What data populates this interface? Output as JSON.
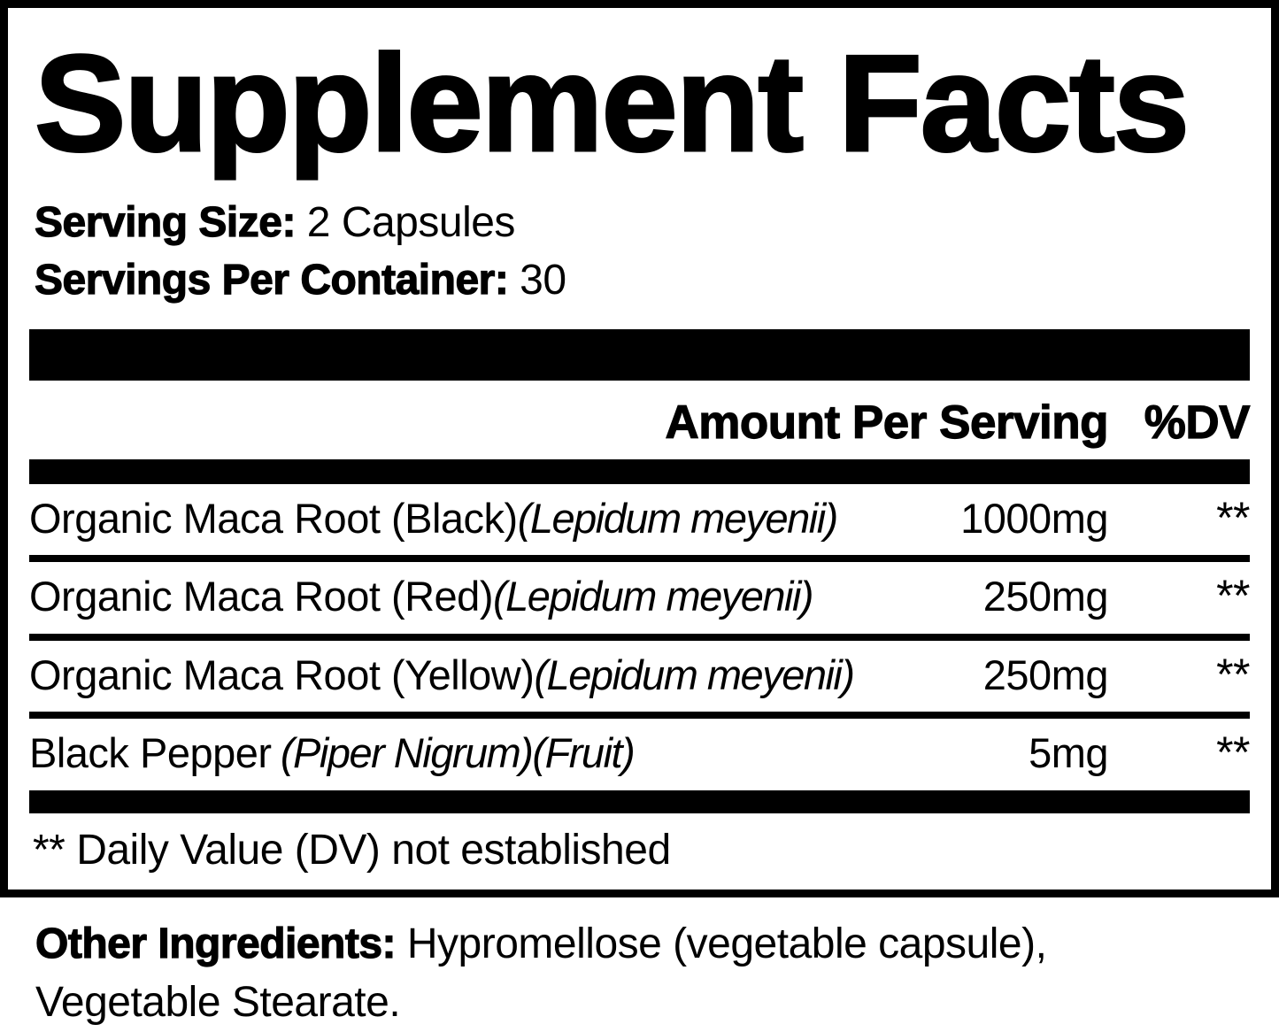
{
  "label": {
    "title": "Supplement Facts",
    "serving_size": {
      "label": "Serving Size:",
      "value": "2 Capsules"
    },
    "servings_per_container": {
      "label": "Servings Per Container:",
      "value": "30"
    },
    "table": {
      "amount_header": "Amount Per Serving",
      "dv_header": "%DV",
      "rows": [
        {
          "name": "Organic Maca Root (Black)",
          "species": "(Lepidum meyenii)",
          "amount": "1000mg",
          "dv": "**"
        },
        {
          "name": "Organic Maca Root (Red)",
          "species": "(Lepidum meyenii)",
          "amount": "250mg",
          "dv": "**"
        },
        {
          "name": "Organic Maca Root (Yellow)",
          "species": "(Lepidum meyenii)",
          "amount": "250mg",
          "dv": "**"
        },
        {
          "name": "Black Pepper",
          "species": "(Piper Nigrum)(Fruit)",
          "amount": "5mg",
          "dv": "**"
        }
      ]
    },
    "footnote": "** Daily Value (DV) not established",
    "other_ingredients": {
      "label": "Other Ingredients:",
      "line1": "Hypromellose (vegetable capsule),",
      "line2": "Vegetable Stearate."
    },
    "colors": {
      "ink": "#000000",
      "background": "#ffffff"
    }
  }
}
